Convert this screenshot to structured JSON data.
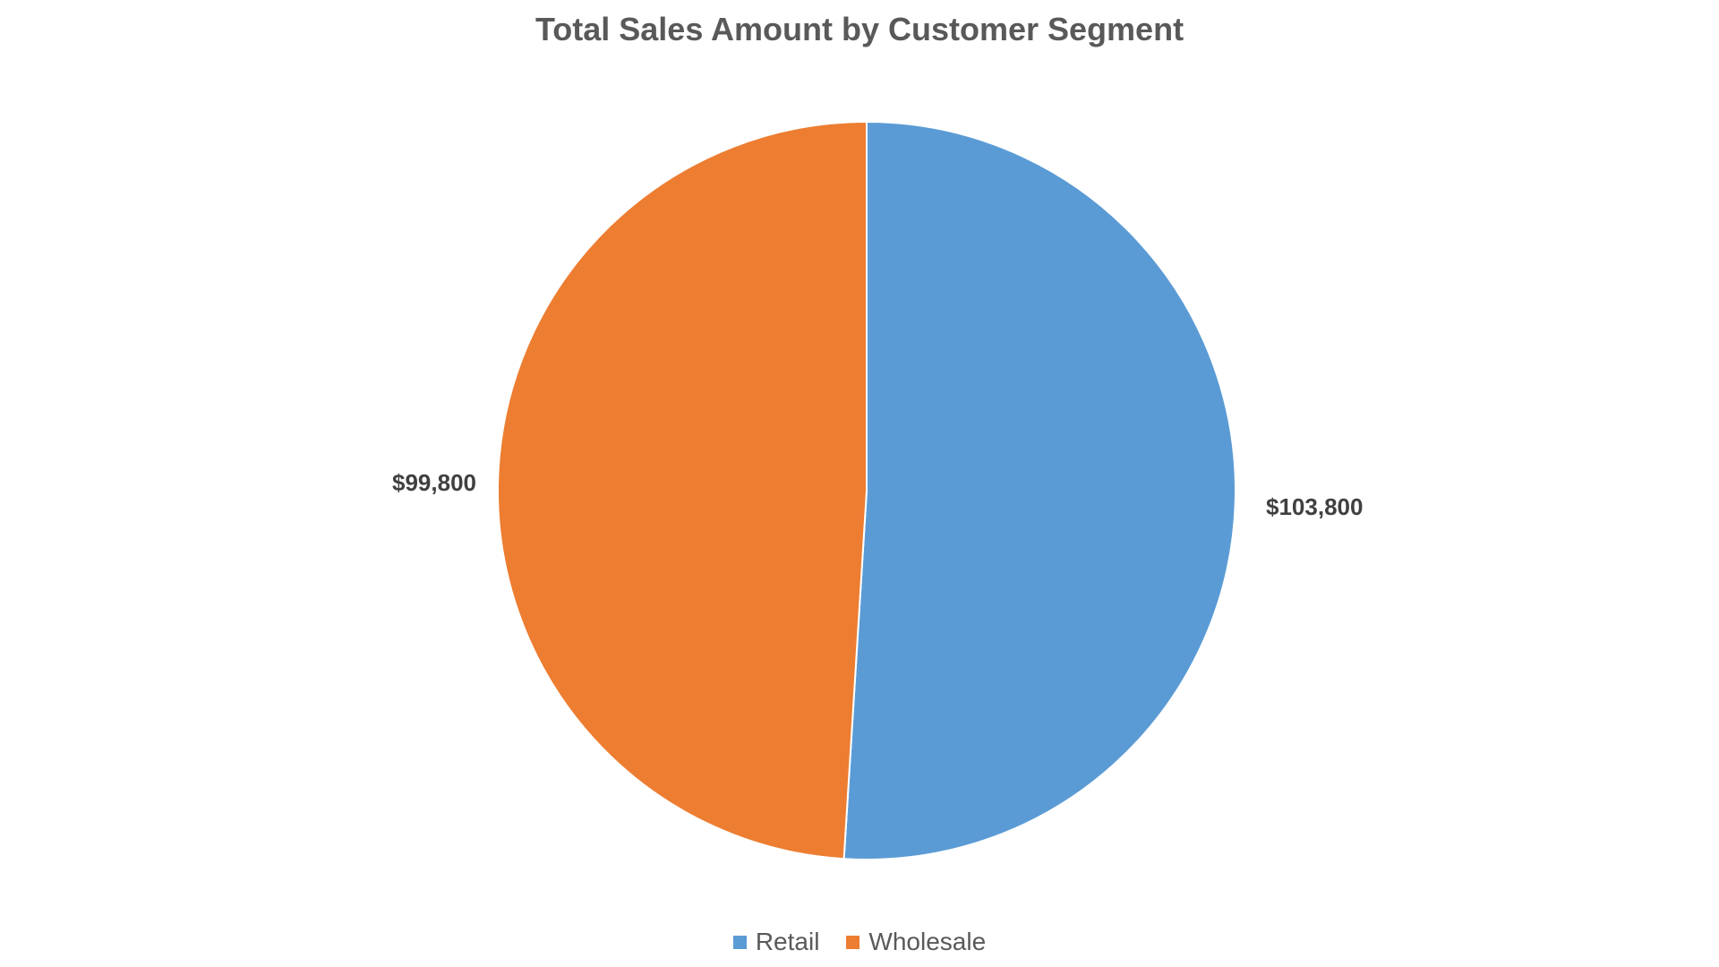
{
  "chart_data": {
    "type": "pie",
    "title": "Total Sales Amount by Customer Segment",
    "categories": [
      "Retail",
      "Wholesale"
    ],
    "values": [
      103800,
      99800
    ],
    "labels": [
      "$103,800",
      "$99,800"
    ],
    "colors": [
      "#5B9BD5",
      "#ED7D31"
    ],
    "start_angle": "12 o'clock",
    "direction": "clockwise",
    "legend_position": "bottom"
  }
}
